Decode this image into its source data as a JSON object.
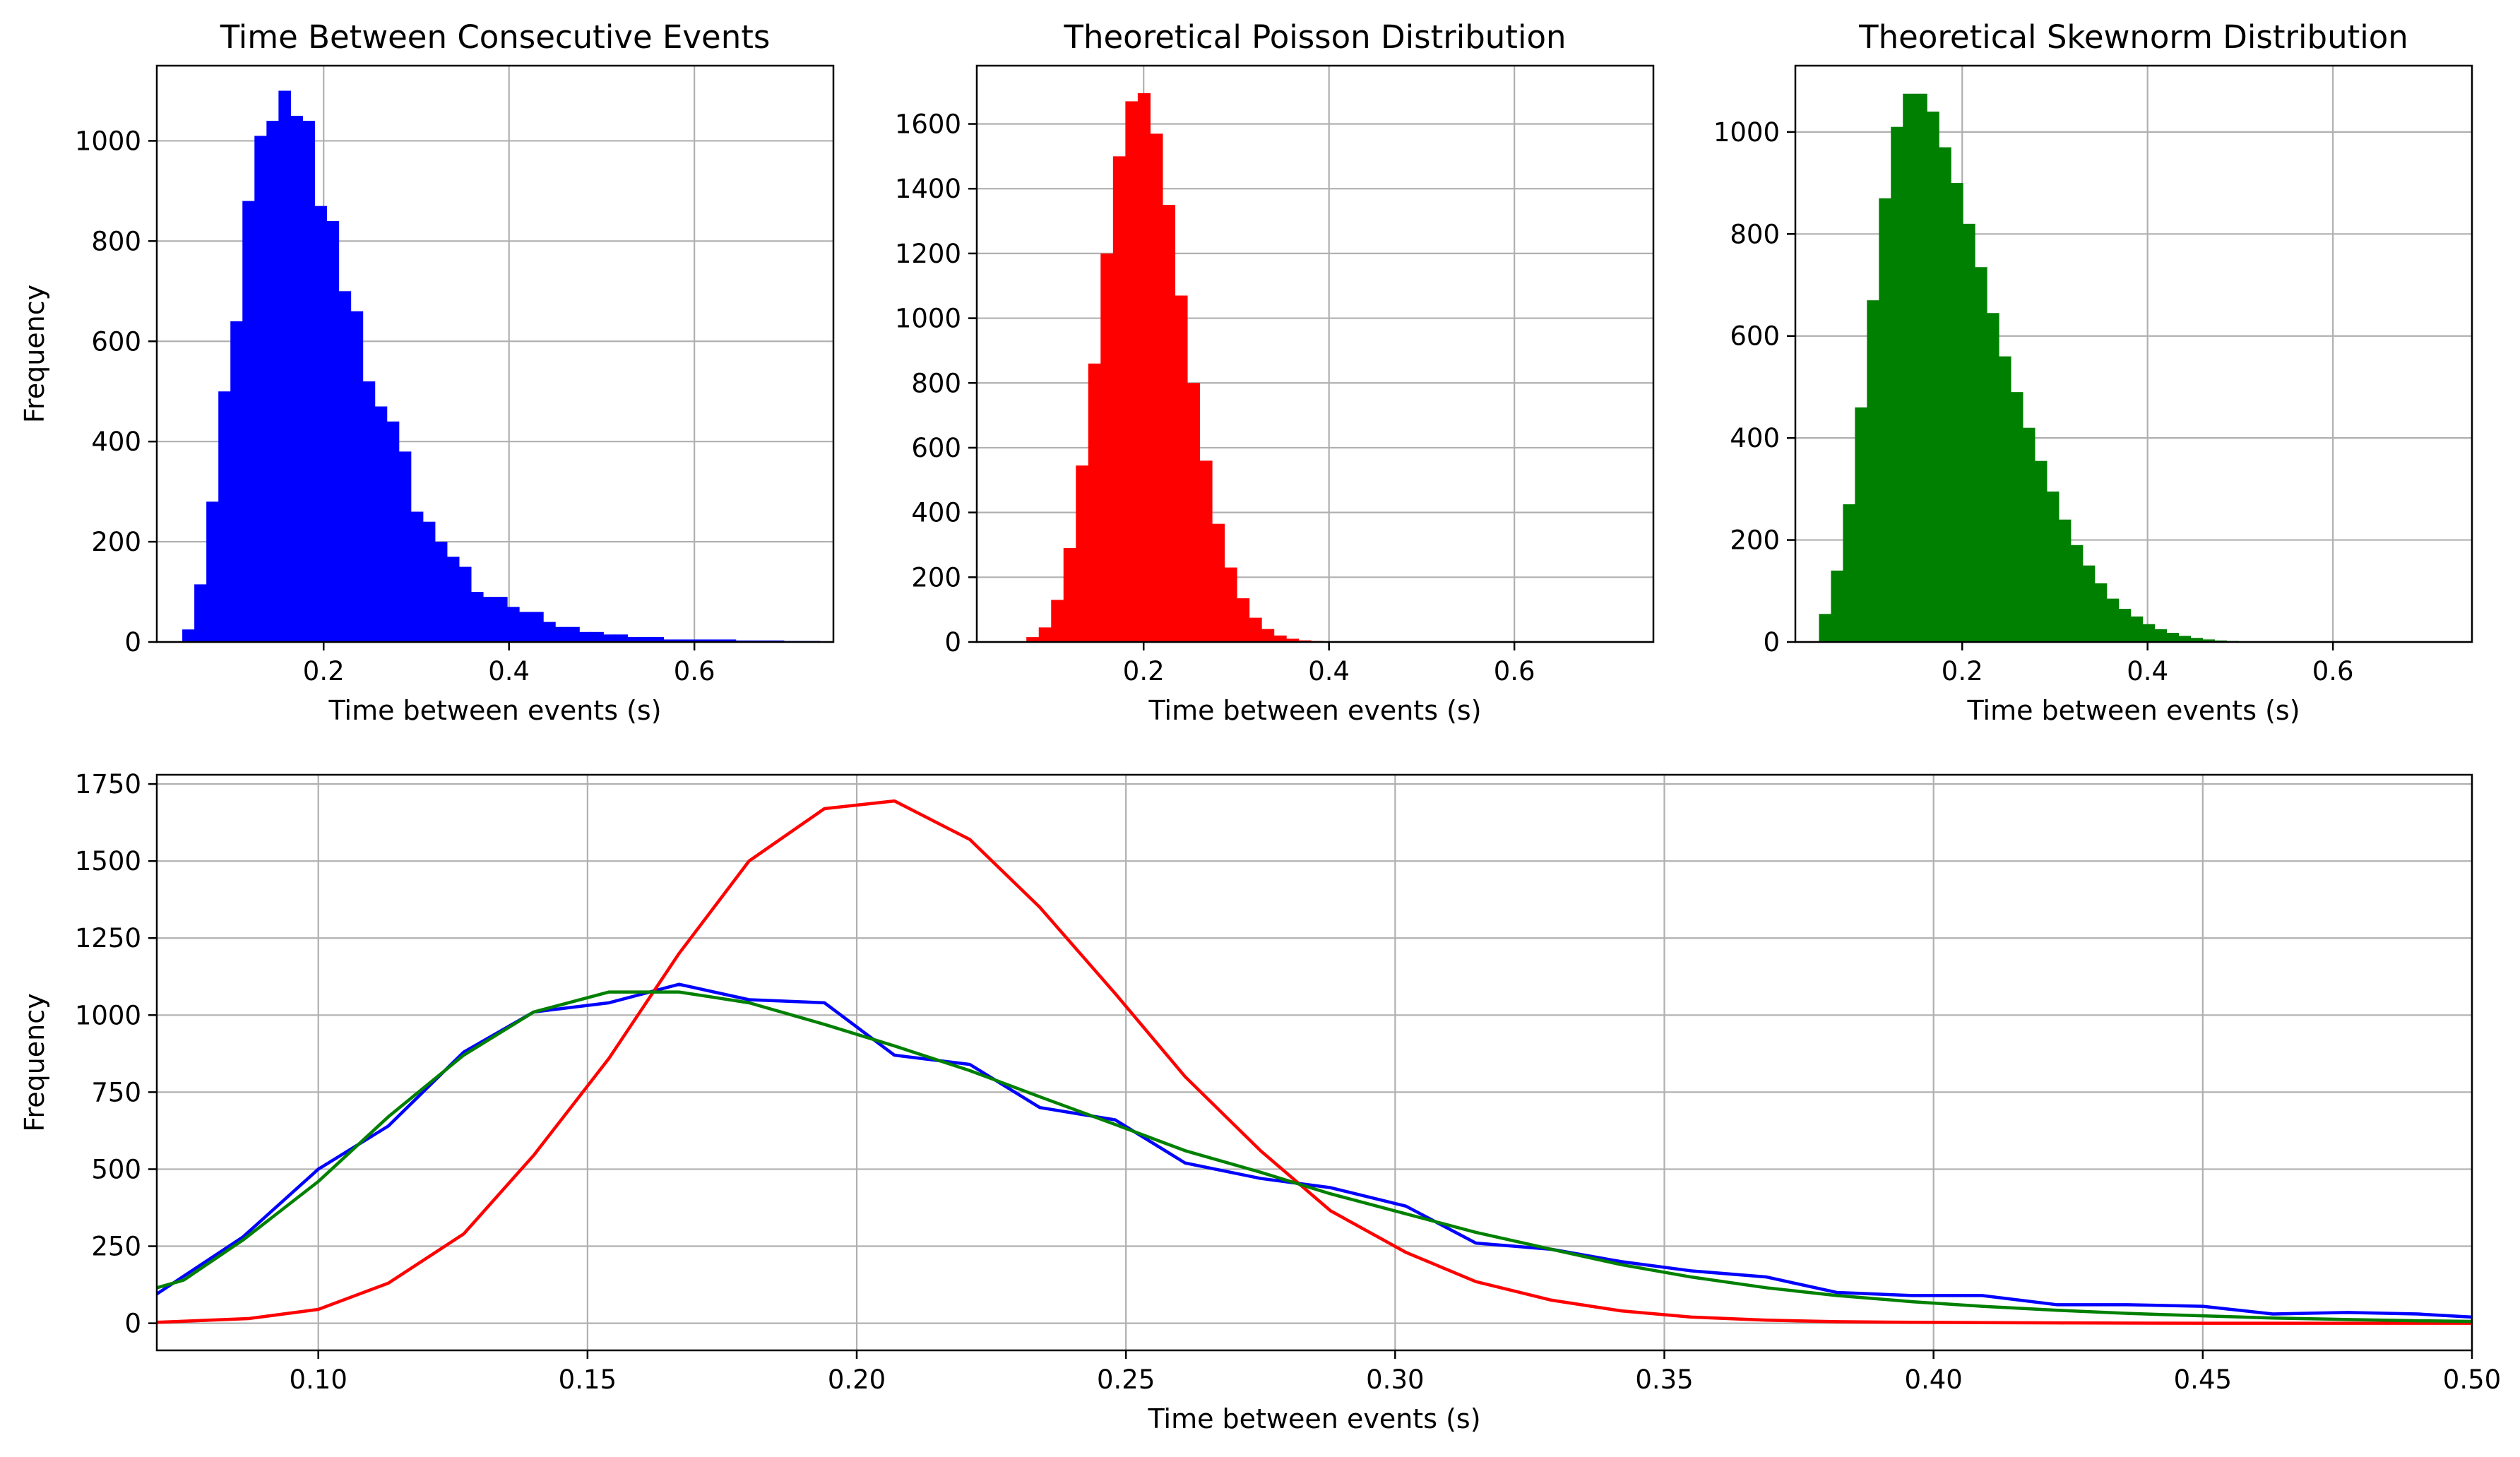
{
  "chart_data": [
    {
      "type": "bar",
      "title": "Time Between Consecutive Events",
      "xlabel": "Time between events (s)",
      "ylabel": "Frequency",
      "xlim": [
        0.02,
        0.75
      ],
      "ylim": [
        0,
        1150
      ],
      "xticks": [
        0.2,
        0.4,
        0.6
      ],
      "xtick_labels": [
        "0.2",
        "0.4",
        "0.6"
      ],
      "yticks": [
        0,
        200,
        400,
        600,
        800,
        1000
      ],
      "ytick_labels": [
        "0",
        "200",
        "400",
        "600",
        "800",
        "1000"
      ],
      "grid": true,
      "color": "#0000ff",
      "bins": {
        "start": 0.0475,
        "width": 0.01298
      },
      "values": [
        25,
        115,
        280,
        500,
        640,
        880,
        1010,
        1040,
        1100,
        1050,
        1040,
        870,
        840,
        700,
        660,
        520,
        470,
        440,
        380,
        260,
        240,
        200,
        170,
        150,
        100,
        90,
        90,
        70,
        60,
        60,
        40,
        30,
        30,
        20,
        20,
        15,
        15,
        10,
        10,
        10,
        5,
        5,
        5,
        5,
        5,
        5,
        3,
        3,
        3,
        3,
        2,
        2,
        2
      ]
    },
    {
      "type": "bar",
      "title": "Theoretical Poisson Distribution",
      "xlabel": "Time between events (s)",
      "ylabel": "",
      "xlim": [
        0.02,
        0.75
      ],
      "ylim": [
        0,
        1780
      ],
      "xticks": [
        0.2,
        0.4,
        0.6
      ],
      "xtick_labels": [
        "0.2",
        "0.4",
        "0.6"
      ],
      "yticks": [
        0,
        200,
        400,
        600,
        800,
        1000,
        1200,
        1400,
        1600
      ],
      "ytick_labels": [
        "0",
        "200",
        "400",
        "600",
        "800",
        "1000",
        "1200",
        "1400",
        "1600"
      ],
      "grid": true,
      "color": "#ff0000",
      "bins": {
        "start": 0.0735,
        "width": 0.01335
      },
      "values": [
        15,
        45,
        130,
        290,
        545,
        860,
        1200,
        1500,
        1670,
        1695,
        1570,
        1350,
        1070,
        800,
        560,
        365,
        230,
        135,
        75,
        40,
        20,
        10,
        5,
        3,
        2
      ]
    },
    {
      "type": "bar",
      "title": "Theoretical Skewnorm Distribution",
      "xlabel": "Time between events (s)",
      "ylabel": "",
      "xlim": [
        0.02,
        0.75
      ],
      "ylim": [
        0,
        1130
      ],
      "xticks": [
        0.2,
        0.4,
        0.6
      ],
      "xtick_labels": [
        "0.2",
        "0.4",
        "0.6"
      ],
      "yticks": [
        0,
        200,
        400,
        600,
        800,
        1000
      ],
      "ytick_labels": [
        "0",
        "200",
        "400",
        "600",
        "800",
        "1000"
      ],
      "grid": true,
      "color": "#008000",
      "bins": {
        "start": 0.0455,
        "width": 0.01293
      },
      "values": [
        55,
        140,
        270,
        460,
        670,
        870,
        1010,
        1075,
        1075,
        1040,
        970,
        900,
        820,
        735,
        645,
        560,
        490,
        420,
        355,
        295,
        240,
        190,
        150,
        115,
        85,
        65,
        50,
        35,
        25,
        18,
        12,
        8,
        5,
        3,
        2,
        1
      ]
    },
    {
      "type": "line",
      "title": "",
      "xlabel": "Time between events (s)",
      "ylabel": "Frequency",
      "xlim": [
        0.07,
        0.5
      ],
      "ylim": [
        -88,
        1780
      ],
      "xticks": [
        0.1,
        0.15,
        0.2,
        0.25,
        0.3,
        0.35,
        0.4,
        0.45,
        0.5
      ],
      "xtick_labels": [
        "0.10",
        "0.15",
        "0.20",
        "0.25",
        "0.30",
        "0.35",
        "0.40",
        "0.45",
        "0.50"
      ],
      "yticks": [
        0,
        250,
        500,
        750,
        1000,
        1250,
        1500,
        1750
      ],
      "ytick_labels": [
        "0",
        "250",
        "500",
        "750",
        "1000",
        "1250",
        "1500",
        "1750"
      ],
      "grid": true,
      "series": [
        {
          "color": "#0000ff",
          "x": [
            0.07,
            0.086,
            0.1,
            0.113,
            0.127,
            0.14,
            0.154,
            0.167,
            0.18,
            0.194,
            0.207,
            0.221,
            0.234,
            0.248,
            0.261,
            0.275,
            0.288,
            0.302,
            0.315,
            0.329,
            0.342,
            0.355,
            0.369,
            0.382,
            0.396,
            0.409,
            0.423,
            0.436,
            0.45,
            0.463,
            0.477,
            0.49,
            0.5
          ],
          "y": [
            95,
            280,
            500,
            640,
            880,
            1010,
            1040,
            1100,
            1050,
            1040,
            870,
            840,
            700,
            660,
            520,
            470,
            440,
            380,
            260,
            240,
            200,
            170,
            150,
            100,
            90,
            90,
            60,
            60,
            55,
            30,
            35,
            30,
            20
          ]
        },
        {
          "color": "#ff0000",
          "x": [
            0.07,
            0.087,
            0.1,
            0.113,
            0.127,
            0.14,
            0.154,
            0.167,
            0.18,
            0.194,
            0.207,
            0.221,
            0.234,
            0.248,
            0.261,
            0.275,
            0.288,
            0.302,
            0.315,
            0.329,
            0.342,
            0.355,
            0.369,
            0.382,
            0.396,
            0.409,
            0.423,
            0.45,
            0.5
          ],
          "y": [
            3,
            15,
            45,
            130,
            290,
            545,
            860,
            1200,
            1500,
            1670,
            1695,
            1570,
            1350,
            1070,
            800,
            560,
            365,
            230,
            135,
            75,
            40,
            20,
            10,
            5,
            3,
            2,
            1,
            0,
            0
          ]
        },
        {
          "color": "#008000",
          "x": [
            0.07,
            0.075,
            0.086,
            0.1,
            0.113,
            0.127,
            0.14,
            0.154,
            0.167,
            0.18,
            0.194,
            0.207,
            0.221,
            0.234,
            0.248,
            0.261,
            0.275,
            0.288,
            0.302,
            0.315,
            0.329,
            0.342,
            0.355,
            0.369,
            0.382,
            0.396,
            0.409,
            0.423,
            0.436,
            0.45,
            0.463,
            0.477,
            0.49,
            0.5
          ],
          "y": [
            115,
            140,
            270,
            460,
            670,
            870,
            1010,
            1075,
            1075,
            1040,
            970,
            900,
            820,
            735,
            645,
            560,
            490,
            420,
            355,
            295,
            240,
            190,
            150,
            115,
            90,
            70,
            55,
            42,
            32,
            24,
            17,
            12,
            8,
            6
          ]
        }
      ]
    }
  ]
}
